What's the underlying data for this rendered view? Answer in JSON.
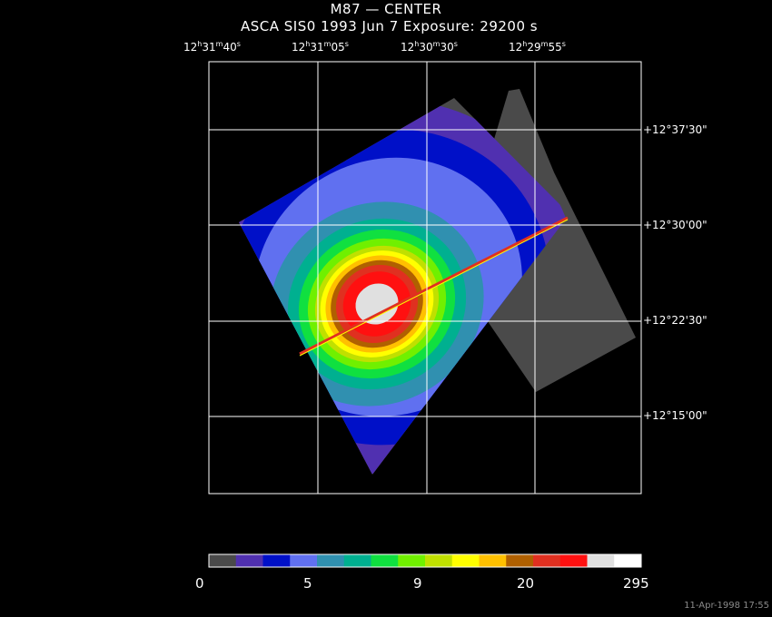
{
  "header": {
    "title": "M87 — CENTER",
    "subtitle": "ASCA SIS0   1993 Jun  7    Exposure: 29200 s"
  },
  "ra_labels": [
    {
      "h": "12",
      "m": "31",
      "s": "40"
    },
    {
      "h": "12",
      "m": "31",
      "s": "05"
    },
    {
      "h": "12",
      "m": "30",
      "s": "30"
    },
    {
      "h": "12",
      "m": "29",
      "s": "55"
    }
  ],
  "dec_labels": [
    "+12°37'30\"",
    "+12°30'00\"",
    "+12°22'30\"",
    "+12°15'00\""
  ],
  "colorbar": {
    "colors": [
      "#4a4a4a",
      "#5030b0",
      "#0010c8",
      "#6070f0",
      "#3090b0",
      "#00b090",
      "#10e040",
      "#70f000",
      "#c0e000",
      "#ffff00",
      "#ffc000",
      "#b06000",
      "#e03020",
      "#ff1010",
      "#e0e0e0",
      "#ffffff"
    ],
    "tick_labels": [
      "0",
      "5",
      "9",
      "20",
      "295"
    ]
  },
  "footer": {
    "timestamp": "11-Apr-1998 17:55"
  }
}
